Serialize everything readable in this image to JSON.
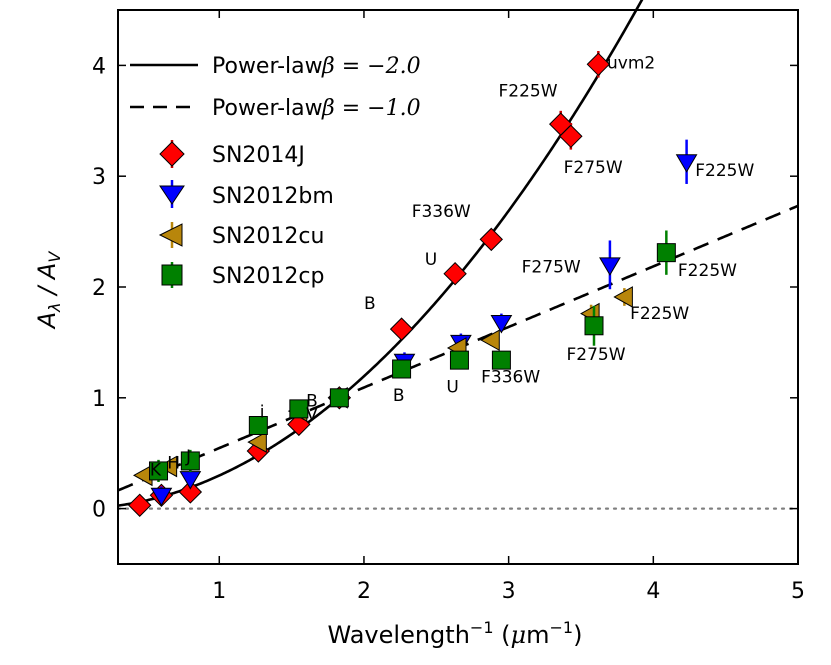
{
  "chart_data": {
    "type": "scatter",
    "xlabel": "Wavelength⁻¹ (μm⁻¹)",
    "ylabel": "Aλ / AV",
    "xlim": [
      0.3,
      5.0
    ],
    "ylim": [
      -0.5,
      4.5
    ],
    "x_ticks": [
      "1",
      "2",
      "3",
      "4",
      "5"
    ],
    "y_ticks": [
      "0",
      "1",
      "2",
      "3",
      "4"
    ],
    "reference_line": {
      "y": 0,
      "style": "dotted",
      "color": "#808080"
    },
    "curves": [
      {
        "name": "Power-law",
        "beta_label": "β = −2.0",
        "beta": -2.0,
        "style": "solid"
      },
      {
        "name": "Power-law",
        "beta_label": "β = −1.0",
        "beta": -1.0,
        "style": "dashed"
      }
    ],
    "series": [
      {
        "name": "SN2014J",
        "marker": "diamond",
        "color": "#ff0000",
        "err_color": "#cc0000",
        "points": [
          {
            "x": 0.45,
            "y": 0.03,
            "err": 0.0
          },
          {
            "x": 0.6,
            "y": 0.12,
            "err": 0.0
          },
          {
            "x": 0.8,
            "y": 0.15,
            "err": 0.0
          },
          {
            "x": 1.27,
            "y": 0.52,
            "err": 0.03
          },
          {
            "x": 1.55,
            "y": 0.76,
            "err": 0.03
          },
          {
            "x": 1.83,
            "y": 1.0,
            "err": 0.0
          },
          {
            "x": 2.26,
            "y": 1.62,
            "err": 0.05
          },
          {
            "x": 2.63,
            "y": 2.12,
            "err": 0.05
          },
          {
            "x": 2.88,
            "y": 2.43,
            "err": 0.06
          },
          {
            "x": 3.36,
            "y": 3.47,
            "err": 0.12
          },
          {
            "x": 3.43,
            "y": 3.36,
            "err": 0.12
          },
          {
            "x": 3.62,
            "y": 4.01,
            "err": 0.12
          }
        ]
      },
      {
        "name": "SN2012bm",
        "marker": "triangle-down",
        "color": "#0000ff",
        "err_color": "#0000ff",
        "points": [
          {
            "x": 0.6,
            "y": 0.12,
            "err": 0.08
          },
          {
            "x": 0.8,
            "y": 0.27,
            "err": 0.08
          },
          {
            "x": 2.28,
            "y": 1.33,
            "err": 0.08
          },
          {
            "x": 2.67,
            "y": 1.5,
            "err": 0.08
          },
          {
            "x": 2.95,
            "y": 1.68,
            "err": 0.08
          },
          {
            "x": 3.7,
            "y": 2.2,
            "err": 0.22
          },
          {
            "x": 4.23,
            "y": 3.13,
            "err": 0.2
          }
        ]
      },
      {
        "name": "SN2012cu",
        "marker": "triangle-left",
        "color": "#b8860b",
        "err_color": "#b8860b",
        "points": [
          {
            "x": 0.48,
            "y": 0.3,
            "err": 0.05
          },
          {
            "x": 0.65,
            "y": 0.38,
            "err": 0.05
          },
          {
            "x": 1.27,
            "y": 0.6,
            "err": 0.05
          },
          {
            "x": 1.55,
            "y": 0.88,
            "err": 0.05
          },
          {
            "x": 1.83,
            "y": 1.0,
            "err": 0.0
          },
          {
            "x": 2.65,
            "y": 1.45,
            "err": 0.05
          },
          {
            "x": 2.88,
            "y": 1.52,
            "err": 0.05
          },
          {
            "x": 3.57,
            "y": 1.76,
            "err": 0.08
          },
          {
            "x": 3.8,
            "y": 1.91,
            "err": 0.08
          }
        ]
      },
      {
        "name": "SN2012cp",
        "marker": "square",
        "color": "#008000",
        "err_color": "#008000",
        "points": [
          {
            "x": 0.58,
            "y": 0.34,
            "err": 0.1
          },
          {
            "x": 0.8,
            "y": 0.43,
            "err": 0.1
          },
          {
            "x": 1.27,
            "y": 0.75,
            "err": 0.06
          },
          {
            "x": 1.55,
            "y": 0.9,
            "err": 0.05
          },
          {
            "x": 1.83,
            "y": 1.0,
            "err": 0.0
          },
          {
            "x": 2.26,
            "y": 1.26,
            "err": 0.05
          },
          {
            "x": 2.66,
            "y": 1.34,
            "err": 0.05
          },
          {
            "x": 2.95,
            "y": 1.34,
            "err": 0.05
          },
          {
            "x": 3.59,
            "y": 1.65,
            "err": 0.18
          },
          {
            "x": 4.09,
            "y": 2.31,
            "err": 0.2
          }
        ]
      }
    ],
    "annotations": [
      {
        "text": "uvm2",
        "x": 3.68,
        "y": 3.97
      },
      {
        "text": "F225W",
        "x": 2.93,
        "y": 3.72
      },
      {
        "text": "F275W",
        "x": 3.38,
        "y": 3.03
      },
      {
        "text": "F336W",
        "x": 2.33,
        "y": 2.63
      },
      {
        "text": "U",
        "x": 2.42,
        "y": 2.2
      },
      {
        "text": "B",
        "x": 2.0,
        "y": 1.8
      },
      {
        "text": "F225W",
        "x": 4.29,
        "y": 3.0
      },
      {
        "text": "F275W",
        "x": 3.09,
        "y": 2.13
      },
      {
        "text": "F225W",
        "x": 4.17,
        "y": 2.1
      },
      {
        "text": "F225W",
        "x": 3.84,
        "y": 1.71
      },
      {
        "text": "F275W",
        "x": 3.4,
        "y": 1.34
      },
      {
        "text": "F336W",
        "x": 2.81,
        "y": 1.14
      },
      {
        "text": "B",
        "x": 2.2,
        "y": 0.97
      },
      {
        "text": "U",
        "x": 2.57,
        "y": 1.05
      },
      {
        "text": "B",
        "x": 1.6,
        "y": 0.92
      },
      {
        "text": "V",
        "x": 1.6,
        "y": 0.8
      },
      {
        "text": "K",
        "x": 0.52,
        "y": 0.3
      },
      {
        "text": "H",
        "x": 0.64,
        "y": 0.36
      },
      {
        "text": "J",
        "x": 0.77,
        "y": 0.42
      },
      {
        "text": "i",
        "x": 1.28,
        "y": 0.82
      }
    ]
  }
}
